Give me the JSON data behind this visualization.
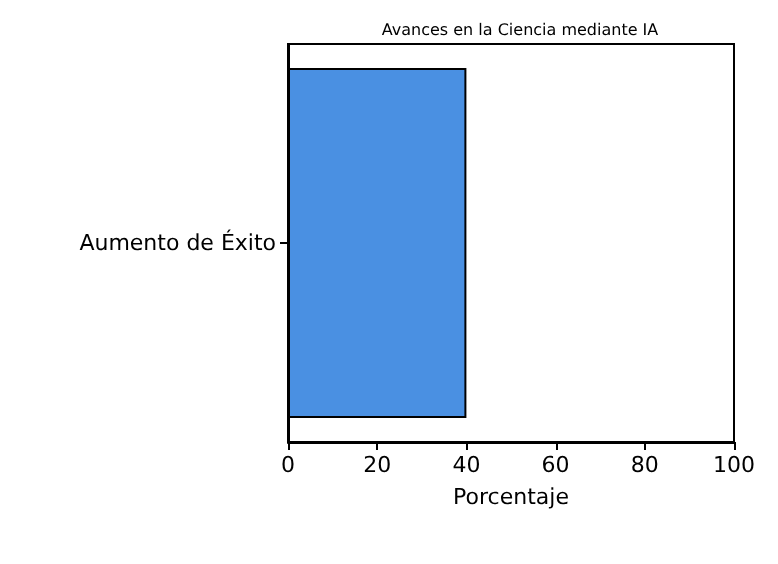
{
  "chart_data": {
    "type": "bar",
    "orientation": "horizontal",
    "title": "Avances en la Ciencia mediante IA",
    "xlabel": "Porcentaje",
    "categories": [
      "Aumento de Éxito"
    ],
    "values": [
      40
    ],
    "color": "#4a90e2",
    "xlim": [
      0,
      100
    ],
    "xticks": [
      0,
      20,
      40,
      60,
      80,
      100
    ]
  }
}
